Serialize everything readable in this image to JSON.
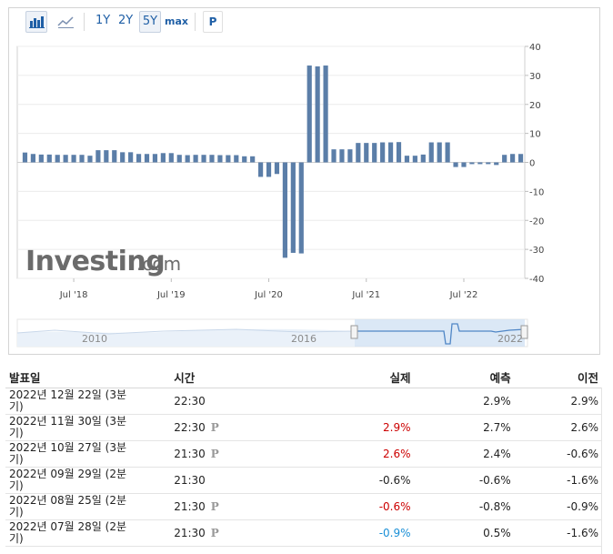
{
  "toolbar": {
    "bar_chart_icon": "bar-chart-icon",
    "area_chart_icon": "area-chart-icon",
    "periods": [
      "1Y",
      "2Y",
      "5Y",
      "max"
    ],
    "active_period": "5Y",
    "p_label": "P"
  },
  "watermark": {
    "brand": "Investing",
    "suffix": ".com"
  },
  "chart_data": {
    "type": "bar",
    "title": "",
    "xlabel": "",
    "ylabel": "",
    "ylim": [
      -40,
      40
    ],
    "yticks": [
      40,
      30,
      20,
      10,
      0,
      -10,
      -20,
      -30,
      -40
    ],
    "x_tick_labels": [
      "Jul '18",
      "Jul '19",
      "Jul '20",
      "Jul '21",
      "Jul '22"
    ],
    "x_tick_index": [
      6,
      18,
      30,
      42,
      54
    ],
    "color": "#5b7ea8",
    "values": [
      3.4,
      2.9,
      2.7,
      2.7,
      2.6,
      2.6,
      2.6,
      2.6,
      2.3,
      4.2,
      4.2,
      4.2,
      3.5,
      3.5,
      2.9,
      2.9,
      2.9,
      3.2,
      3.2,
      2.6,
      2.5,
      2.6,
      2.6,
      2.6,
      2.5,
      2.5,
      2.5,
      2.1,
      2.1,
      -5.0,
      -5.0,
      -4.0,
      -32.9,
      -31.2,
      -31.4,
      33.4,
      33.1,
      33.4,
      4.5,
      4.5,
      4.5,
      6.7,
      6.7,
      6.7,
      6.9,
      6.9,
      7.0,
      2.3,
      2.3,
      2.7,
      6.9,
      6.9,
      6.9,
      -1.6,
      -1.6,
      -0.6,
      -0.6,
      -0.6,
      -0.9,
      2.6,
      2.9,
      2.9
    ]
  },
  "navigator": {
    "labels": [
      "2010",
      "2016",
      "2022"
    ]
  },
  "table": {
    "headers": [
      "발표일",
      "시간",
      "실제",
      "예측",
      "이전"
    ],
    "rows": [
      {
        "date_line1": "2022년 12월 22일 (3분",
        "date_line2": "기)",
        "time": "22:30",
        "p": "",
        "actual": "",
        "actual_color": "",
        "forecast": "2.9%",
        "previous": "2.9%"
      },
      {
        "date_line1": "2022년 11월 30일 (3분",
        "date_line2": "기)",
        "time": "22:30",
        "p": "P",
        "actual": "2.9%",
        "actual_color": "red",
        "forecast": "2.7%",
        "previous": "2.6%"
      },
      {
        "date_line1": "2022년 10월 27일 (3분",
        "date_line2": "기)",
        "time": "21:30",
        "p": "P",
        "actual": "2.6%",
        "actual_color": "red",
        "forecast": "2.4%",
        "previous": "-0.6%"
      },
      {
        "date_line1": "2022년 09월 29일 (2분",
        "date_line2": "기)",
        "time": "21:30",
        "p": "",
        "actual": "-0.6%",
        "actual_color": "",
        "forecast": "-0.6%",
        "previous": "-1.6%"
      },
      {
        "date_line1": "2022년 08월 25일 (2분",
        "date_line2": "기)",
        "time": "21:30",
        "p": "P",
        "actual": "-0.6%",
        "actual_color": "red",
        "forecast": "-0.8%",
        "previous": "-0.9%"
      },
      {
        "date_line1": "2022년 07월 28일 (2분",
        "date_line2": "기)",
        "time": "21:30",
        "p": "P",
        "actual": "-0.9%",
        "actual_color": "blue",
        "forecast": "0.5%",
        "previous": "-1.6%"
      }
    ]
  }
}
